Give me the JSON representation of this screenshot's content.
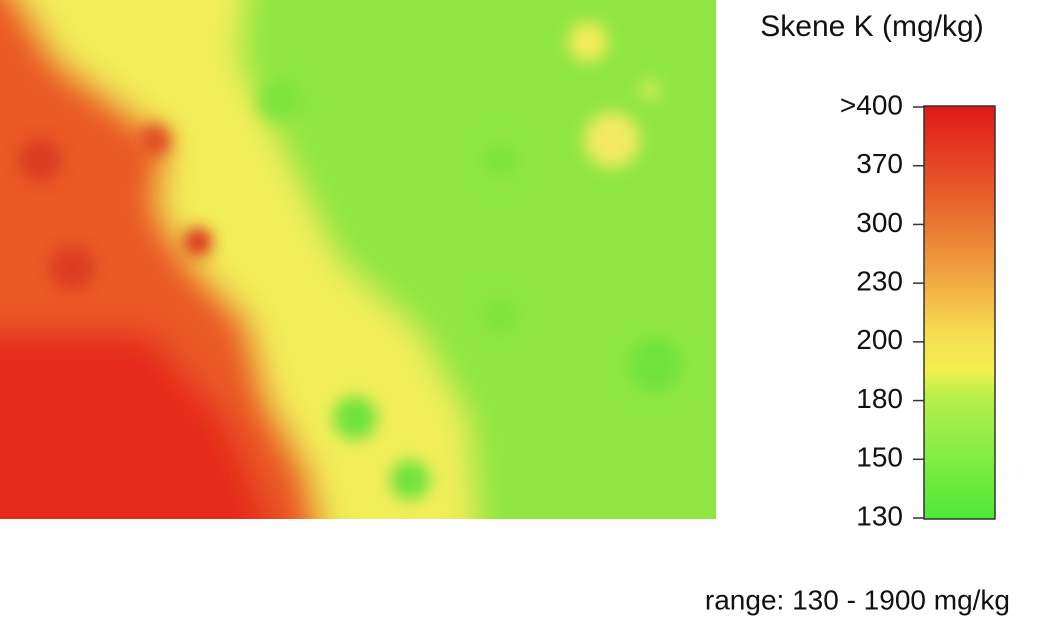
{
  "chart_data": {
    "type": "colormap",
    "title": "Skene K (mg/kg)",
    "note": "range: 130 - 1900 mg/kg",
    "colorbar_ticks": [
      {
        "value": 400,
        "label": ">400"
      },
      370,
      300,
      230,
      200,
      180,
      150,
      130
    ]
  }
}
